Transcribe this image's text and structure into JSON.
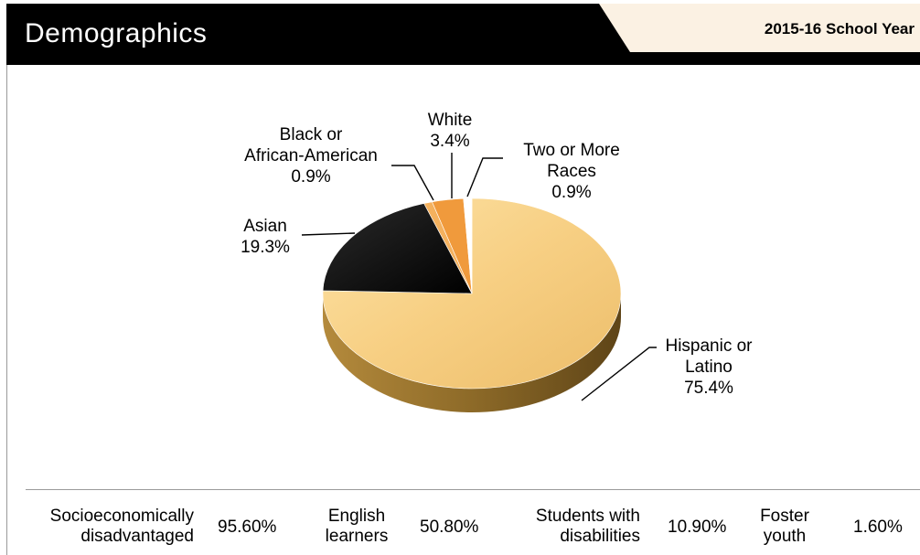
{
  "header": {
    "title": "Demographics",
    "year_label": "2015-16 School Year"
  },
  "colors": {
    "header_bg": "#000000",
    "year_tab_bg": "#fbf1e3",
    "hispanic": "#f6cf82",
    "asian": "#111111",
    "black": "#f4b15e",
    "white": "#f09a3c",
    "two_or_more": "#ffffff"
  },
  "chart_data": {
    "type": "pie",
    "title": "",
    "slices": [
      {
        "label_lines": [
          "Hispanic or",
          "Latino"
        ],
        "value": 75.4,
        "value_label": "75.4%"
      },
      {
        "label_lines": [
          "Asian"
        ],
        "value": 19.3,
        "value_label": "19.3%"
      },
      {
        "label_lines": [
          "Black or",
          "African-American"
        ],
        "value": 0.9,
        "value_label": "0.9%"
      },
      {
        "label_lines": [
          "White"
        ],
        "value": 3.4,
        "value_label": "3.4%"
      },
      {
        "label_lines": [
          "Two or More",
          "Races"
        ],
        "value": 0.9,
        "value_label": "0.9%"
      }
    ]
  },
  "stats": [
    {
      "label_lines": [
        "Socioeconomically",
        "disadvantaged"
      ],
      "value": "95.60%"
    },
    {
      "label_lines": [
        "English",
        "learners"
      ],
      "value": "50.80%"
    },
    {
      "label_lines": [
        "Students with",
        "disabilities"
      ],
      "value": "10.90%"
    },
    {
      "label_lines": [
        "Foster",
        "youth"
      ],
      "value": "1.60%"
    }
  ]
}
